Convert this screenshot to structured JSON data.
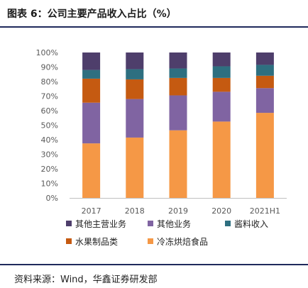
{
  "title": "图表 6：公司主要产品收入占比（%）",
  "source": "资料来源：Wind，华鑫证券研发部",
  "chart_data": {
    "type": "bar",
    "stacked": true,
    "categories": [
      "2017",
      "2018",
      "2019",
      "2020",
      "2021H1"
    ],
    "ylim": [
      0,
      100
    ],
    "yticks": [
      "0%",
      "10%",
      "20%",
      "30%",
      "40%",
      "50%",
      "60%",
      "70%",
      "80%",
      "90%",
      "100%"
    ],
    "grid": false,
    "legend_position": "bottom",
    "series": [
      {
        "name": "冷冻烘焙食品",
        "color": "#f59846",
        "values": [
          37.5,
          41.5,
          46.5,
          52.5,
          58.5
        ]
      },
      {
        "name": "其他业务",
        "color": "#8064a2",
        "values": [
          28,
          26.5,
          24,
          20.5,
          17
        ]
      },
      {
        "name": "水果制品类",
        "color": "#c55a11",
        "values": [
          16.5,
          13.5,
          12,
          9.5,
          8.5
        ]
      },
      {
        "name": "酱料收入",
        "color": "#2e6f80",
        "values": [
          6,
          7,
          6.5,
          8,
          7.5
        ]
      },
      {
        "name": "其他主营业务",
        "color": "#4e3e6b",
        "values": [
          12,
          11.5,
          11,
          9.5,
          8.5
        ]
      }
    ],
    "legend_order": [
      "其他主营业务",
      "其他业务",
      "酱料收入",
      "水果制品类",
      "冷冻烘焙食品"
    ]
  }
}
